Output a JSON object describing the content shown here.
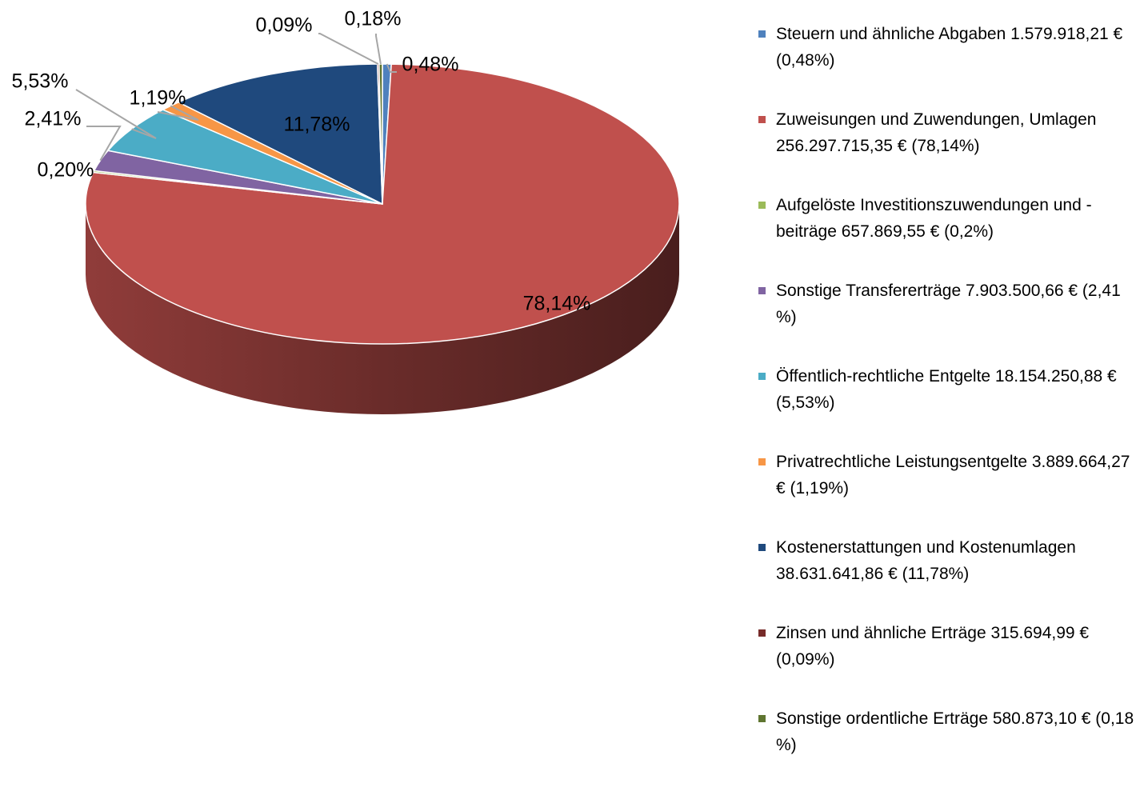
{
  "chart_data": {
    "type": "pie3d",
    "categories": [
      "Steuern und ähnliche Abgaben 1.579.918,21 € (0,48%)",
      "Zuweisungen und Zuwendungen, Umlagen 256.297.715,35 € (78,14%)",
      "Aufgelöste Investitionszuwendungen und -beiträge 657.869,55 € (0,2%)",
      "Sonstige Transfererträge 7.903.500,66 € (2,41 %)",
      "Öffentlich-rechtliche Entgelte 18.154.250,88 € (5,53%)",
      "Privatrechtliche Leistungsentgelte 3.889.664,27 € (1,19%)",
      "Kostenerstattungen und Kostenumlagen 38.631.641,86 € (11,78%)",
      "Zinsen und ähnliche Erträge 315.694,99 € (0,09%)",
      "Sonstige ordentliche Erträge 580.873,10 € (0,18 %)"
    ],
    "values": [
      0.48,
      78.14,
      0.2,
      2.41,
      5.53,
      1.19,
      11.78,
      0.09,
      0.18
    ],
    "value_labels": [
      "0,48%",
      "78,14%",
      "0,20%",
      "2,41%",
      "5,53%",
      "1,19%",
      "11,78%",
      "0,09%",
      "0,18%"
    ],
    "colors": [
      "#4f81bd",
      "#c0504d",
      "#9bbb59",
      "#8064a2",
      "#4bacc6",
      "#f79646",
      "#1f497d",
      "#772c2a",
      "#5f7530"
    ],
    "legend": "right"
  }
}
